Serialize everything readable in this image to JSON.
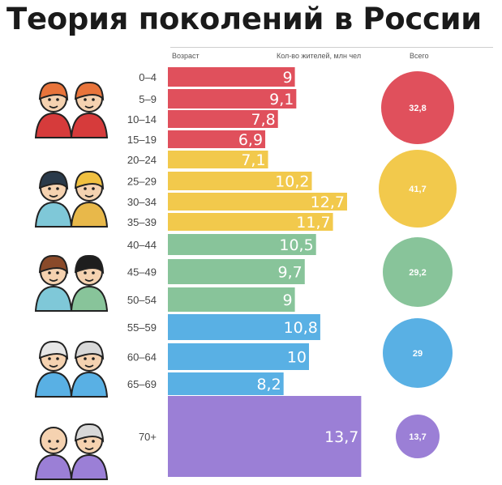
{
  "title": "Теория поколений в России",
  "headers": {
    "age": "Возраст",
    "count": "Кол-во жителей, млн чел",
    "total": "Всего"
  },
  "chart_data": {
    "type": "bar",
    "orientation": "horizontal",
    "categories": [
      "0–4",
      "5–9",
      "10–14",
      "15–19",
      "20–24",
      "25–29",
      "30–34",
      "35–39",
      "40–44",
      "45–49",
      "50–54",
      "55–59",
      "60–64",
      "65–69",
      "70+"
    ],
    "values": [
      9,
      9.1,
      7.8,
      6.9,
      7.1,
      10.2,
      12.7,
      11.7,
      10.5,
      9.7,
      9,
      10.8,
      10,
      8.2,
      13.7
    ],
    "value_labels": [
      "9",
      "9,1",
      "7,8",
      "6,9",
      "7,1",
      "10,2",
      "12,7",
      "11,7",
      "10,5",
      "9,7",
      "9",
      "10,8",
      "10",
      "8,2",
      "13,7"
    ],
    "groups": [
      {
        "color": "#e0505c",
        "total": 32.8,
        "total_label": "32,8",
        "indices": [
          0,
          1,
          2,
          3
        ],
        "avatar": "kids-with-headphones-icon"
      },
      {
        "color": "#f2c94c",
        "total": 41.7,
        "total_label": "41,7",
        "indices": [
          4,
          5,
          6,
          7
        ],
        "avatar": "young-adults-icon"
      },
      {
        "color": "#88c49a",
        "total": 29.2,
        "total_label": "29,2",
        "indices": [
          8,
          9,
          10
        ],
        "avatar": "middle-aged-couple-icon"
      },
      {
        "color": "#59b0e4",
        "total": 29,
        "total_label": "29",
        "indices": [
          11,
          12,
          13
        ],
        "avatar": "elderly-couple-icon"
      },
      {
        "color": "#9b7fd6",
        "total": 13.7,
        "total_label": "13,7",
        "indices": [
          14
        ],
        "avatar": "senior-couple-icon"
      }
    ]
  }
}
